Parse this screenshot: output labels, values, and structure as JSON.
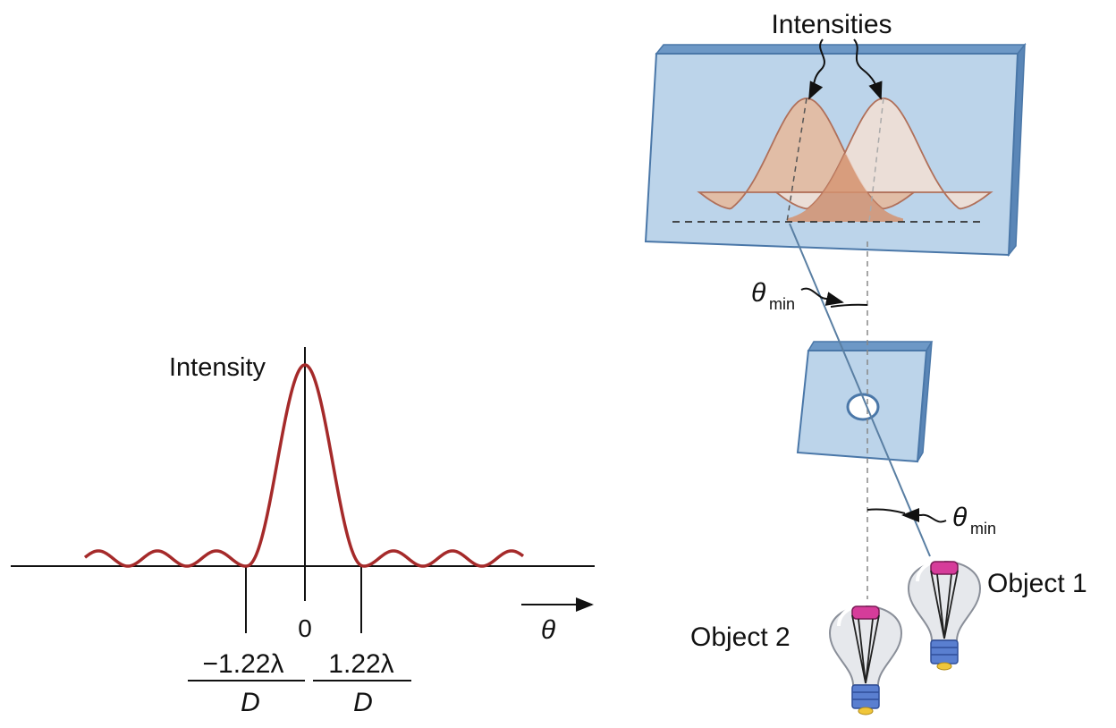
{
  "left_plot": {
    "y_label": "Intensity",
    "origin_label": "0",
    "x_axis_symbol": "θ",
    "neg_fraction": {
      "numerator": "−1.22λ",
      "denominator": "D"
    },
    "pos_fraction": {
      "numerator": "1.22λ",
      "denominator": "D"
    },
    "curve_color": "#a52a2a"
  },
  "right_diagram": {
    "intensities_label": "Intensities",
    "theta_min_upper": {
      "symbol": "θ",
      "subscript": "min"
    },
    "theta_min_lower": {
      "symbol": "θ",
      "subscript": "min"
    },
    "object1_label": "Object 1",
    "object2_label": "Object 2",
    "screen_color": "#bcd4ea",
    "curve_fill_color": "#e8b89a"
  }
}
